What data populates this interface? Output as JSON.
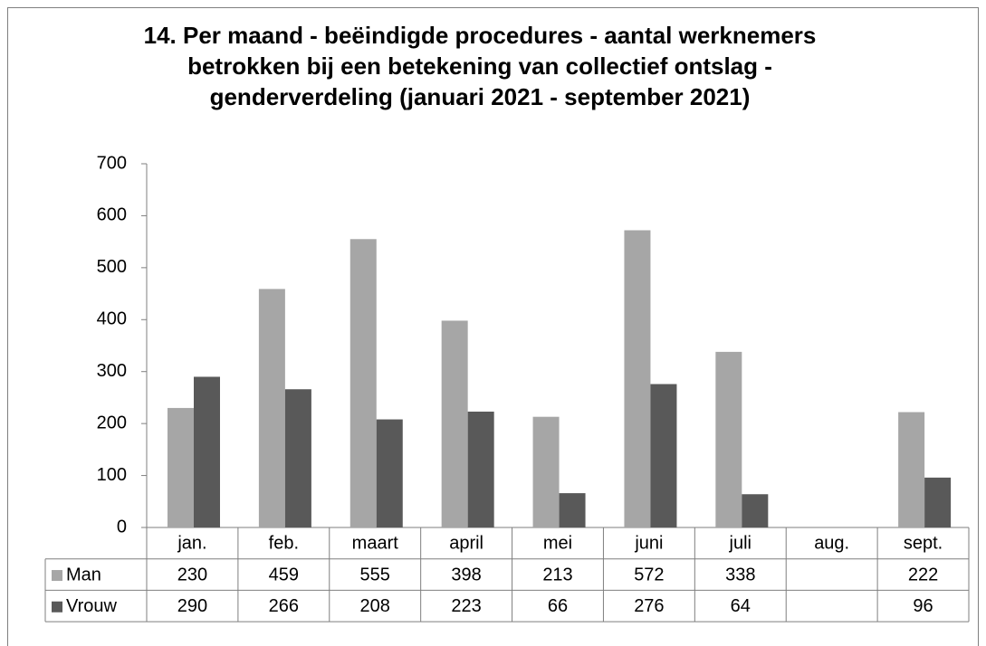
{
  "chart_data": {
    "type": "bar",
    "title": "14. Per maand - beëindigde procedures - aantal werknemers betrokken bij een betekening van collectief ontslag - genderverdeling (januari 2021 - september 2021)",
    "categories": [
      "jan.",
      "feb.",
      "maart",
      "april",
      "mei",
      "juni",
      "juli",
      "aug.",
      "sept."
    ],
    "series": [
      {
        "name": "Man",
        "color": "#a6a6a6",
        "values": [
          230,
          459,
          555,
          398,
          213,
          572,
          338,
          null,
          222
        ]
      },
      {
        "name": "Vrouw",
        "color": "#595959",
        "values": [
          290,
          266,
          208,
          223,
          66,
          276,
          64,
          null,
          96
        ]
      }
    ],
    "ylim": [
      0,
      700
    ],
    "yticks": [
      0,
      100,
      200,
      300,
      400,
      500,
      600,
      700
    ],
    "grid": false,
    "legend": "data-table"
  }
}
